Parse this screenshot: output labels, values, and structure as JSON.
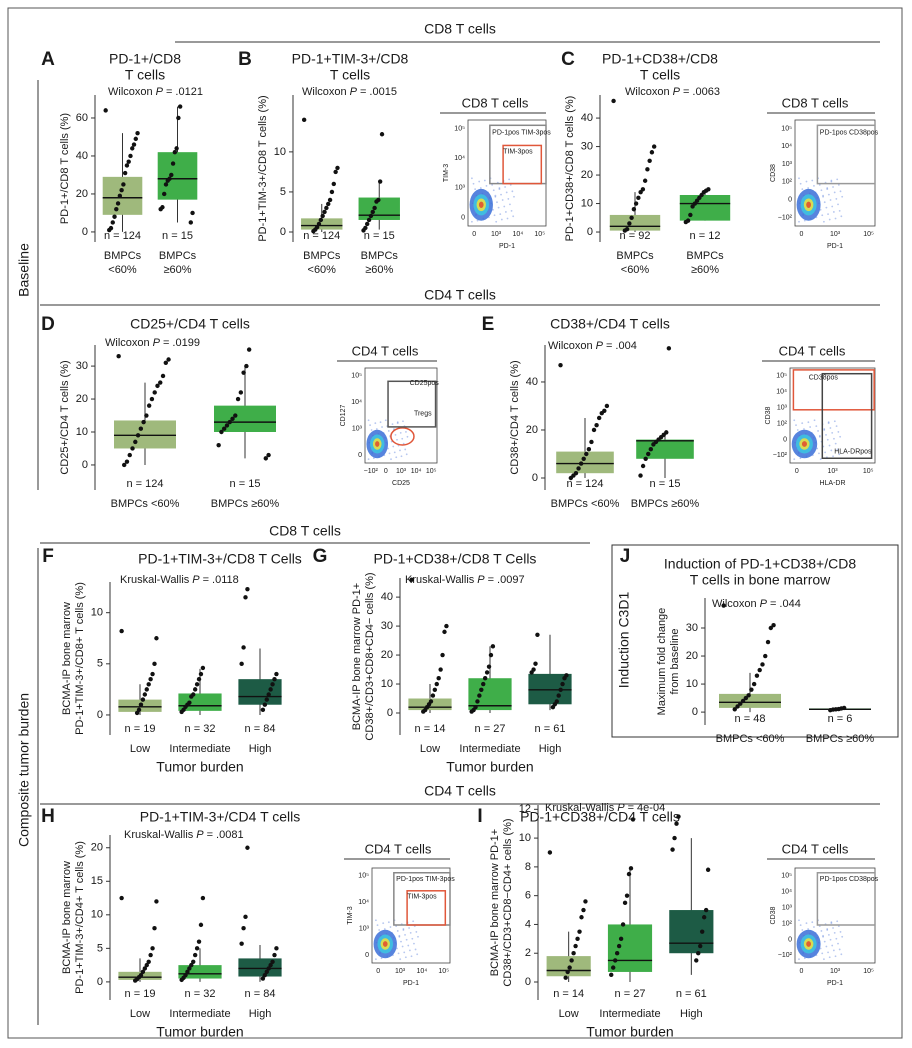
{
  "figure": {
    "row_labels": [
      "Baseline",
      "Composite tumor burden"
    ],
    "section_headers": [
      "CD8 T cells",
      "CD4 T cells",
      "CD8 T cells",
      "CD4 T cells"
    ]
  },
  "chart_data": [
    {
      "type": "box",
      "panel": "A",
      "title": [
        "PD-1+/CD8",
        "T cells"
      ],
      "ylabel": [
        "PD-1+/CD8 T cells (%)"
      ],
      "annotation": {
        "test": "Wilcoxon",
        "stat": "P",
        "relation": "=",
        "value": ".0121"
      },
      "categories": [
        [
          "BMPCs",
          "<60%"
        ],
        [
          "BMPCs",
          "≥60%"
        ]
      ],
      "n_labels": [
        "n = 124",
        "n = 15"
      ],
      "ylim": [
        -5.3,
        72.1
      ],
      "yticks": [
        0,
        20,
        40,
        60
      ],
      "boxes": [
        {
          "color": "#9fb97c",
          "whisker_low": 0,
          "q1": 9,
          "median": 18,
          "q3": 29,
          "whisker_high": 52,
          "points": [
            64,
            52,
            49,
            46,
            44,
            40,
            37,
            35,
            31,
            25,
            22,
            19,
            15,
            12,
            8,
            5,
            2,
            1
          ]
        },
        {
          "color": "#3fae49",
          "whisker_low": 5,
          "q1": 17,
          "median": 28,
          "q3": 42,
          "whisker_high": 66,
          "points": [
            66,
            60,
            44,
            42,
            36,
            30,
            28,
            27,
            25,
            20,
            13,
            12,
            10,
            5
          ]
        }
      ]
    },
    {
      "type": "box",
      "panel": "B",
      "title": [
        "PD-1+TIM-3+/CD8",
        "T cells"
      ],
      "ylabel": [
        "PD-1+TIM-3+/CD8 T cells (%)"
      ],
      "annotation": {
        "test": "Wilcoxon",
        "stat": "P",
        "relation": "=",
        "value": ".0015"
      },
      "categories": [
        [
          "BMPCs",
          "<60%"
        ],
        [
          "BMPCs",
          "≥60%"
        ]
      ],
      "n_labels": [
        "n = 124",
        "n = 15"
      ],
      "ylim": [
        -1.25,
        17.1
      ],
      "yticks": [
        0,
        5,
        10
      ],
      "boxes": [
        {
          "color": "#9fb97c",
          "whisker_low": 0,
          "q1": 0.3,
          "median": 0.8,
          "q3": 1.7,
          "whisker_high": 3.5,
          "points": [
            14,
            8,
            7.5,
            6,
            5,
            4,
            3.5,
            3,
            2.5,
            2,
            1.5,
            1,
            0.6,
            0.3,
            0.1
          ]
        },
        {
          "color": "#3fae49",
          "whisker_low": 0.3,
          "q1": 1.5,
          "median": 2.1,
          "q3": 4.3,
          "whisker_high": 6.5,
          "points": [
            12.2,
            6.3,
            4,
            3.8,
            3,
            2.5,
            2,
            1.5,
            1,
            0.5,
            0.2
          ]
        }
      ]
    },
    {
      "type": "box",
      "panel": "C",
      "title": [
        "PD-1+CD38+/CD8",
        "T cells"
      ],
      "ylabel": [
        "PD-1+CD38+/CD8 T cells (%)"
      ],
      "annotation": {
        "test": "Wilcoxon",
        "stat": "P",
        "relation": "=",
        "value": ".0063"
      },
      "categories": [
        [
          "BMPCs",
          "<60%"
        ],
        [
          "BMPCs",
          "≥60%"
        ]
      ],
      "n_labels": [
        "n = 92",
        "n = 12"
      ],
      "ylim": [
        -3.5,
        48.1
      ],
      "yticks": [
        0,
        10,
        20,
        30,
        40
      ],
      "boxes": [
        {
          "color": "#9fb97c",
          "whisker_low": 0,
          "q1": 0.5,
          "median": 2,
          "q3": 6,
          "whisker_high": 14,
          "points": [
            46,
            30,
            28,
            25,
            22,
            18,
            15,
            14,
            12,
            10,
            8,
            5,
            3,
            1,
            0.5
          ]
        },
        {
          "color": "#3fae49",
          "whisker_low": 4,
          "q1": 4,
          "median": 10,
          "q3": 13,
          "whisker_high": 15,
          "points": [
            15,
            14.5,
            14,
            13,
            12,
            11,
            10,
            9,
            6,
            4,
            3.5
          ]
        }
      ]
    },
    {
      "type": "box",
      "panel": "D",
      "title": [
        "CD25+/CD4 T cells"
      ],
      "ylabel": [
        "CD25+/CD4 T cells (%)"
      ],
      "annotation": {
        "test": "Wilcoxon",
        "stat": "P",
        "relation": "=",
        "value": ".0199"
      },
      "categories": [
        [
          "BMPCs <60%"
        ],
        [
          "BMPCs ≥60%"
        ]
      ],
      "n_labels": [
        "n = 124",
        "n = 15"
      ],
      "ylim": [
        -7.6,
        36.4
      ],
      "yticks": [
        0,
        10,
        20,
        30
      ],
      "boxes": [
        {
          "color": "#9fb97c",
          "whisker_low": 0,
          "q1": 5,
          "median": 9,
          "q3": 13.5,
          "whisker_high": 25,
          "points": [
            33,
            32,
            31,
            27,
            25,
            24,
            22,
            20,
            18,
            15,
            13,
            11,
            9,
            7,
            5,
            3,
            1,
            0
          ]
        },
        {
          "color": "#3fae49",
          "whisker_low": 2,
          "q1": 10,
          "median": 13,
          "q3": 18,
          "whisker_high": 30,
          "points": [
            35,
            30,
            28,
            22,
            20,
            15,
            14,
            13,
            12,
            11,
            10,
            6,
            3,
            2
          ]
        }
      ]
    },
    {
      "type": "box",
      "panel": "E",
      "title": [
        "CD38+/CD4 T cells"
      ],
      "ylabel": [
        "CD38+/CD4 T cells (%)"
      ],
      "annotation": {
        "test": "Wilcoxon",
        "stat": "P",
        "relation": "=",
        "value": ".004"
      },
      "categories": [
        [
          "BMPCs <60%"
        ],
        [
          "BMPCs ≥60%"
        ]
      ],
      "n_labels": [
        "n = 124",
        "n = 15"
      ],
      "ylim": [
        -5,
        55.4
      ],
      "yticks": [
        0,
        20,
        40
      ],
      "boxes": [
        {
          "color": "#9fb97c",
          "whisker_low": 0,
          "q1": 2,
          "median": 6,
          "q3": 11,
          "whisker_high": 25,
          "points": [
            47,
            30,
            28,
            27,
            25,
            22,
            20,
            15,
            12,
            10,
            8,
            6,
            4,
            2,
            1,
            0
          ]
        },
        {
          "color": "#3fae49",
          "whisker_low": 0,
          "q1": 8,
          "median": 15.5,
          "q3": 16,
          "whisker_high": 19,
          "points": [
            54,
            19,
            18,
            17,
            16,
            15,
            14,
            12,
            10,
            8,
            5,
            1
          ]
        }
      ]
    },
    {
      "type": "box",
      "panel": "F",
      "title": [
        "PD-1+TIM-3+/CD8 T Cells"
      ],
      "ylabel": [
        "BCMA-IP bone marrow",
        "PD-1+TIM-3+/CD8+ T cells (%)"
      ],
      "annotation": {
        "test": "Kruskal-Wallis",
        "stat": "P",
        "relation": "=",
        "value": ".0118"
      },
      "categories": [
        [
          "Low"
        ],
        [
          "Intermediate"
        ],
        [
          "High"
        ]
      ],
      "n_labels": [
        "n = 19",
        "n = 32",
        "n = 84"
      ],
      "xlabel": "Tumor burden",
      "ylim": [
        -1.96,
        13.0
      ],
      "yticks": [
        0,
        5,
        10
      ],
      "boxes": [
        {
          "color": "#9fb97c",
          "whisker_low": 0,
          "q1": 0.3,
          "median": 0.8,
          "q3": 1.5,
          "whisker_high": 3,
          "points": [
            8.2,
            7.5,
            5,
            4,
            3.5,
            3,
            2.5,
            2,
            1.5,
            1,
            0.5,
            0.2
          ]
        },
        {
          "color": "#3fae49",
          "whisker_low": 0,
          "q1": 0.4,
          "median": 0.9,
          "q3": 2.1,
          "whisker_high": 4.5,
          "points": [
            4.6,
            4,
            3.5,
            3,
            2.5,
            2,
            1.8,
            1.2,
            1,
            0.8,
            0.5,
            0.3
          ]
        },
        {
          "color": "#1d5b45",
          "whisker_low": 0,
          "q1": 1,
          "median": 1.8,
          "q3": 3.5,
          "whisker_high": 6.5,
          "points": [
            12.3,
            11.5,
            6.6,
            5,
            4,
            3.5,
            3,
            2.5,
            2,
            1.5,
            1,
            0.5
          ]
        }
      ]
    },
    {
      "type": "box",
      "panel": "G",
      "title": [
        "PD-1+CD38+/CD8 T Cells"
      ],
      "ylabel": [
        "BCMA-IP bone marrow PD-1+",
        "CD38+/CD3+CD8+CD4− cells (%)"
      ],
      "annotation": {
        "test": "Kruskal-Wallis",
        "stat": "P",
        "relation": "=",
        "value": ".0097"
      },
      "categories": [
        [
          "Low"
        ],
        [
          "Intermediate"
        ],
        [
          "High"
        ]
      ],
      "n_labels": [
        "n = 14",
        "n = 27",
        "n = 61"
      ],
      "xlabel": "Tumor burden",
      "ylim": [
        -7.6,
        46.6
      ],
      "yticks": [
        0,
        10,
        20,
        30,
        40
      ],
      "boxes": [
        {
          "color": "#9fb97c",
          "whisker_low": 0,
          "q1": 1,
          "median": 2,
          "q3": 5,
          "whisker_high": 10,
          "points": [
            46,
            30,
            28,
            20,
            15,
            12,
            10,
            8,
            6,
            4,
            3,
            2,
            1,
            0.5
          ]
        },
        {
          "color": "#3fae49",
          "whisker_low": 0,
          "q1": 1,
          "median": 2.5,
          "q3": 12,
          "whisker_high": 23,
          "points": [
            23,
            20,
            16,
            14,
            12,
            10,
            8,
            6,
            4,
            2,
            1,
            0.5
          ]
        },
        {
          "color": "#1d5b45",
          "whisker_low": 1,
          "q1": 3,
          "median": 8,
          "q3": 13.5,
          "whisker_high": 27,
          "points": [
            27,
            17,
            15,
            14,
            13,
            12,
            10,
            8,
            6,
            4,
            3,
            2
          ]
        }
      ]
    },
    {
      "type": "box",
      "panel": "J",
      "title": [
        "Induction of PD-1+CD38+/CD8",
        "T cells in bone marrow"
      ],
      "ylabel": [
        "Maximum fold change",
        "from baseline"
      ],
      "side_label": "Induction C3D1",
      "annotation": {
        "test": "Wilcoxon",
        "stat": "P",
        "relation": "=",
        "value": ".044"
      },
      "categories": [
        [
          "BMPCs <60%"
        ],
        [
          "BMPCs ≥60%"
        ]
      ],
      "n_labels": [
        "n = 48",
        "n = 6"
      ],
      "ylim": [
        -4.6,
        40.7
      ],
      "yticks": [
        0,
        10,
        20,
        30
      ],
      "boxes": [
        {
          "color": "#9fb97c",
          "whisker_low": 0,
          "q1": 1.5,
          "median": 3.5,
          "q3": 6.5,
          "whisker_high": 14,
          "points": [
            38,
            31,
            30,
            25,
            20,
            17,
            15,
            13,
            10,
            8,
            6,
            5,
            4,
            3,
            2,
            1
          ]
        },
        {
          "color": "#2e8b3a",
          "whisker_low": 0.5,
          "q1": 0.8,
          "median": 1,
          "q3": 1.3,
          "whisker_high": 1.5,
          "points": [
            1.5,
            1.3,
            1.1,
            1,
            0.9,
            0.7
          ]
        }
      ]
    },
    {
      "type": "box",
      "panel": "H",
      "title": [
        "PD-1+TIM-3+/CD4 T cells"
      ],
      "ylabel": [
        "BCMA-IP bone marrow",
        "PD-1+TIM-3+/CD4+ T cells (%)"
      ],
      "annotation": {
        "test": "Kruskal-Wallis",
        "stat": "P",
        "relation": "=",
        "value": ".0081"
      },
      "categories": [
        [
          "Low"
        ],
        [
          "Intermediate"
        ],
        [
          "High"
        ]
      ],
      "n_labels": [
        "n = 19",
        "n = 32",
        "n = 84"
      ],
      "xlabel": "Tumor burden",
      "ylim": [
        -2.7,
        21.9
      ],
      "yticks": [
        0,
        5,
        10,
        15,
        20
      ],
      "boxes": [
        {
          "color": "#9fb97c",
          "whisker_low": 0,
          "q1": 0.3,
          "median": 0.7,
          "q3": 1.5,
          "whisker_high": 3.5,
          "points": [
            12.5,
            12,
            8,
            5,
            4,
            3,
            2.5,
            2,
            1.5,
            1,
            0.7,
            0.4,
            0.2
          ]
        },
        {
          "color": "#3fae49",
          "whisker_low": 0,
          "q1": 0.5,
          "median": 1.2,
          "q3": 2.5,
          "whisker_high": 5,
          "points": [
            12.5,
            8.5,
            6,
            5,
            4,
            3,
            2.5,
            2,
            1.5,
            1,
            0.6,
            0.3
          ]
        },
        {
          "color": "#1d5b45",
          "whisker_low": 0,
          "q1": 0.8,
          "median": 2,
          "q3": 3.5,
          "whisker_high": 5.5,
          "points": [
            20,
            9.7,
            8,
            5.7,
            5,
            4,
            3,
            2.5,
            2,
            1.5,
            1,
            0.5
          ]
        }
      ]
    },
    {
      "type": "box",
      "panel": "I",
      "title": [
        "PD-1+CD38+/CD4 T cells"
      ],
      "ylabel": [
        "BCMA-IP bone marrow PD-1+",
        "CD38+/CD3+CD8−CD4+ cells (%)"
      ],
      "annotation": {
        "test": "Kruskal-Wallis",
        "stat": "P",
        "relation": "=",
        "value": "4e-04"
      },
      "categories": [
        [
          "Low"
        ],
        [
          "Intermediate"
        ],
        [
          "High"
        ]
      ],
      "n_labels": [
        "n = 14",
        "n = 27",
        "n = 61"
      ],
      "xlabel": "Tumor burden",
      "ylim": [
        -1.25,
        12.3
      ],
      "yticks": [
        0,
        2,
        4,
        6,
        8,
        10,
        12
      ],
      "boxes": [
        {
          "color": "#9fb97c",
          "whisker_low": 0,
          "q1": 0.4,
          "median": 0.8,
          "q3": 1.8,
          "whisker_high": 3.5,
          "points": [
            9,
            5.6,
            5,
            4.5,
            3.5,
            3,
            2.5,
            2,
            1.5,
            1,
            0.7,
            0.3
          ]
        },
        {
          "color": "#3fae49",
          "whisker_low": 0,
          "q1": 0.7,
          "median": 1.5,
          "q3": 4,
          "whisker_high": 8,
          "points": [
            11.3,
            7.9,
            7.5,
            6,
            5.5,
            4,
            3,
            2.5,
            2,
            1.5,
            1,
            0.5
          ]
        },
        {
          "color": "#1d5b45",
          "whisker_low": 0.5,
          "q1": 2,
          "median": 2.7,
          "q3": 5,
          "whisker_high": 10,
          "points": [
            11.5,
            11,
            10,
            9.2,
            7.8,
            5,
            4.5,
            3.5,
            2.5,
            2,
            1.5
          ]
        }
      ]
    }
  ],
  "flow_plots": [
    {
      "title": "CD8 T cells",
      "xlabel": "PD-1",
      "ylabel": "TIM-3",
      "gates": [
        "PD-1pos TIM-3pos",
        "TIM-3pos"
      ],
      "xtick_labels": [
        "0",
        "10³",
        "10⁴",
        "10⁵"
      ],
      "ytick_labels": [
        "0",
        "10³",
        "10⁴",
        "10⁵"
      ]
    },
    {
      "title": "CD8 T cells",
      "xlabel": "PD-1",
      "ylabel": "CD38",
      "gates": [
        "PD-1pos CD38pos"
      ],
      "xtick_labels": [
        "0",
        "10³",
        "10⁵"
      ],
      "ytick_labels": [
        "−10²",
        "0",
        "10²",
        "10³",
        "10⁴",
        "10⁵"
      ]
    },
    {
      "title": "CD4 T cells",
      "xlabel": "CD25",
      "ylabel": "CD127",
      "gates": [
        "CD25pos",
        "Tregs"
      ],
      "xtick_labels": [
        "−10²",
        "0",
        "10³",
        "10⁴",
        "10⁵"
      ],
      "ytick_labels": [
        "0",
        "10³",
        "10⁴",
        "10⁵"
      ]
    },
    {
      "title": "CD4 T cells",
      "xlabel": "HLA-DR",
      "ylabel": "CD38",
      "gates": [
        "CD38pos",
        "HLA-DRpos"
      ],
      "xtick_labels": [
        "0",
        "10³",
        "10⁵"
      ],
      "ytick_labels": [
        "−10²",
        "0",
        "10²",
        "10³",
        "10⁴",
        "10⁵"
      ]
    },
    {
      "title": "CD4 T cells",
      "xlabel": "PD-1",
      "ylabel": "TIM-3",
      "gates": [
        "PD-1pos TIM-3pos",
        "TIM-3pos"
      ],
      "xtick_labels": [
        "0",
        "10³",
        "10⁴",
        "10⁵"
      ],
      "ytick_labels": [
        "0",
        "10³",
        "10⁴",
        "10⁵"
      ]
    },
    {
      "title": "CD4 T cells",
      "xlabel": "PD-1",
      "ylabel": "CD38",
      "gates": [
        "PD-1pos CD38pos"
      ],
      "xtick_labels": [
        "0",
        "10³",
        "10⁵"
      ],
      "ytick_labels": [
        "−10²",
        "0",
        "10²",
        "10³",
        "10⁴",
        "10⁵"
      ]
    }
  ]
}
